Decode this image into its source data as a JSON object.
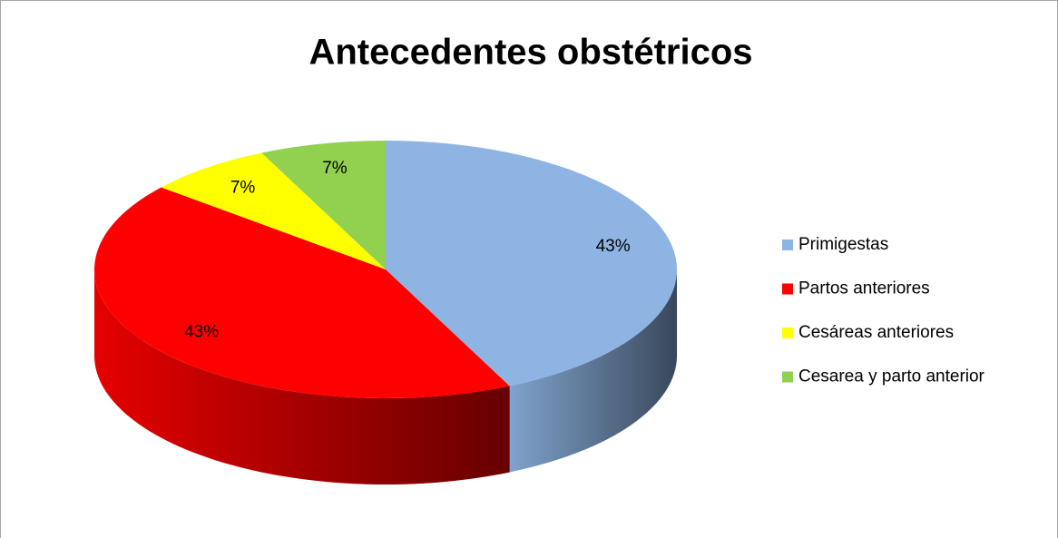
{
  "chart_data": {
    "type": "pie",
    "title": "Antecedentes obstétricos",
    "categories": [
      "Primigestas",
      "Partos anteriores",
      "Cesáreas anteriores",
      "Cesarea y parto anterior"
    ],
    "values": [
      43,
      43,
      7,
      7
    ],
    "value_labels": [
      "43%",
      "43%",
      "7%",
      "7%"
    ],
    "colors": [
      "#8eb4e3",
      "#ff0000",
      "#ffff00",
      "#92d050"
    ],
    "legend": "right"
  }
}
